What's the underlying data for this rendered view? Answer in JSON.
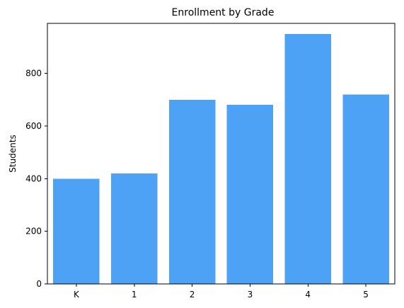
{
  "chart_data": {
    "type": "bar",
    "title": "Enrollment by Grade",
    "xlabel": "",
    "ylabel": "Students",
    "categories": [
      "K",
      "1",
      "2",
      "3",
      "4",
      "5"
    ],
    "values": [
      400,
      420,
      700,
      680,
      950,
      720
    ],
    "ylim": [
      0,
      990
    ],
    "yticks": [
      0,
      200,
      400,
      600,
      800
    ],
    "grid": false,
    "bar_color": "#4ea2f5"
  }
}
